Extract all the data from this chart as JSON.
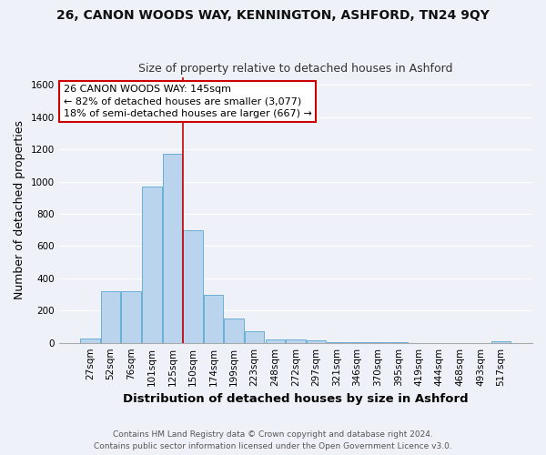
{
  "title": "26, CANON WOODS WAY, KENNINGTON, ASHFORD, TN24 9QY",
  "subtitle": "Size of property relative to detached houses in Ashford",
  "xlabel": "Distribution of detached houses by size in Ashford",
  "ylabel": "Number of detached properties",
  "categories": [
    "27sqm",
    "52sqm",
    "76sqm",
    "101sqm",
    "125sqm",
    "150sqm",
    "174sqm",
    "199sqm",
    "223sqm",
    "248sqm",
    "272sqm",
    "297sqm",
    "321sqm",
    "346sqm",
    "370sqm",
    "395sqm",
    "419sqm",
    "444sqm",
    "468sqm",
    "493sqm",
    "517sqm"
  ],
  "values": [
    25,
    320,
    320,
    970,
    1175,
    700,
    300,
    150,
    70,
    20,
    20,
    15,
    5,
    5,
    5,
    5,
    0,
    0,
    0,
    0,
    10
  ],
  "bar_color": "#bad4ed",
  "bar_edge_color": "#6aafd6",
  "property_line_x": 4.5,
  "property_line_color": "#cc0000",
  "annotation_line1": "26 CANON WOODS WAY: 145sqm",
  "annotation_line2": "← 82% of detached houses are smaller (3,077)",
  "annotation_line3": "18% of semi-detached houses are larger (667) →",
  "annotation_box_facecolor": "#ffffff",
  "annotation_box_edgecolor": "#cc0000",
  "footer_line1": "Contains HM Land Registry data © Crown copyright and database right 2024.",
  "footer_line2": "Contains public sector information licensed under the Open Government Licence v3.0.",
  "ylim": [
    0,
    1650
  ],
  "background_color": "#eef2f8",
  "title_fontsize": 10,
  "subtitle_fontsize": 9,
  "ylabel_fontsize": 9,
  "xlabel_fontsize": 9.5,
  "tick_fontsize": 7.5,
  "footer_fontsize": 6.5,
  "ytick_values": [
    0,
    200,
    400,
    600,
    800,
    1000,
    1200,
    1400,
    1600
  ]
}
